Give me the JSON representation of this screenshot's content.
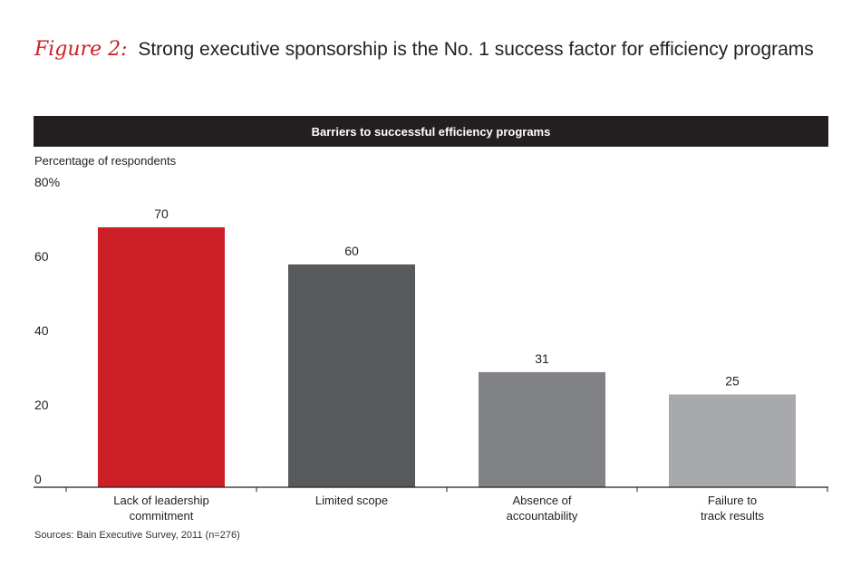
{
  "figure": {
    "label": "Figure 2:",
    "title": "Strong executive sponsorship is the No. 1 success factor for efficiency programs"
  },
  "source": "Sources: Bain Executive Survey, 2011 (n=276)",
  "chart_data": {
    "type": "bar",
    "title": "Barriers to successful efficiency programs",
    "ylabel": "Percentage of respondents",
    "xlabel": "",
    "categories": [
      [
        "Lack of leadership",
        "commitment"
      ],
      [
        "Limited scope"
      ],
      [
        "Absence of",
        "accountability"
      ],
      [
        "Failure to",
        "track results"
      ]
    ],
    "values": [
      70,
      60,
      31,
      25
    ],
    "value_labels": [
      "70",
      "60",
      "31",
      "25"
    ],
    "ylim": [
      0,
      80
    ],
    "yticks": [
      0,
      20,
      40,
      60,
      80
    ],
    "ytick_labels": [
      "0",
      "20",
      "40",
      "60",
      "80%"
    ],
    "bar_colors": [
      "#cc1f26",
      "#58595b",
      "#808285",
      "#a7a9ac"
    ],
    "grid": false,
    "legend": "none"
  }
}
